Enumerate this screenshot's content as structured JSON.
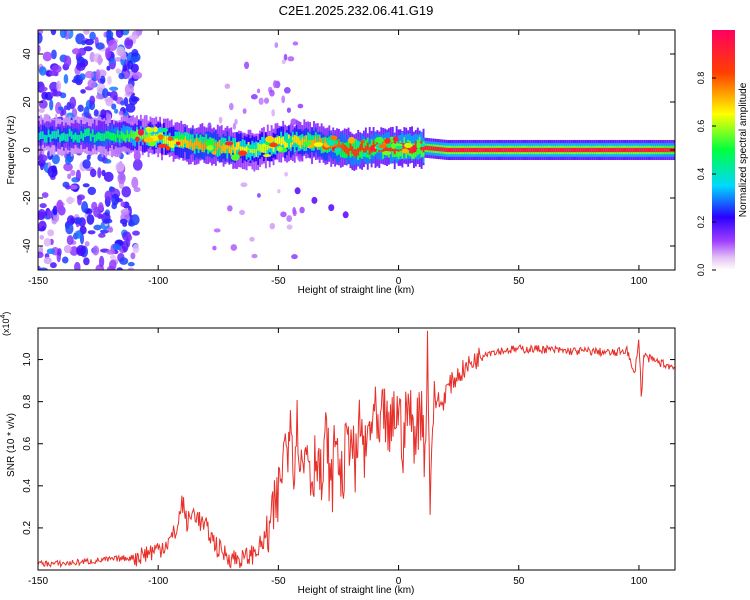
{
  "figure": {
    "title": "C2E1.2025.232.06.41.G19"
  },
  "chart_data": [
    {
      "type": "heatmap",
      "xlabel": "Height of straight line (km)",
      "ylabel": "Frequency (Hz)",
      "xlim": [
        -150,
        115
      ],
      "ylim": [
        -50,
        50
      ],
      "xticks": [
        -150,
        -100,
        -50,
        0,
        50,
        100
      ],
      "yticks": [
        -40,
        -20,
        0,
        20,
        40
      ],
      "colorbar": {
        "label": "Normalized spectral amplitude",
        "range": [
          0.0,
          1.0
        ],
        "ticks": [
          0.0,
          0.2,
          0.4,
          0.6,
          0.8
        ],
        "colors": [
          "#ffffff",
          "#e0b8f0",
          "#a040ff",
          "#2a00ff",
          "#00d8ff",
          "#00ff40",
          "#ffff00",
          "#ff4000",
          "#ff0060"
        ]
      },
      "ridge": {
        "description": "dominant signal line frequency vs height",
        "x": [
          -150,
          -125,
          -110,
          -100,
          -90,
          -80,
          -70,
          -60,
          -50,
          -40,
          -30,
          -20,
          -10,
          0,
          10,
          20,
          40,
          60,
          80,
          100,
          115
        ],
        "y": [
          6,
          6,
          6,
          5,
          3,
          2,
          1,
          0,
          3,
          4,
          2,
          0,
          1,
          1,
          1,
          0,
          0,
          0,
          0,
          0,
          0
        ],
        "amplitude": [
          0.4,
          0.45,
          0.55,
          0.6,
          0.7,
          0.75,
          0.7,
          0.6,
          0.65,
          0.7,
          0.75,
          0.85,
          0.85,
          0.9,
          0.9,
          0.95,
          0.95,
          0.95,
          0.95,
          0.95,
          0.9
        ]
      },
      "secondary_track": {
        "x": [
          -42,
          -35,
          -28,
          -22
        ],
        "y": [
          -17,
          -21,
          -24,
          -27
        ]
      },
      "noise_region": {
        "x_range": [
          -150,
          -108
        ],
        "y_range": [
          -50,
          50
        ],
        "amplitude_range": [
          0.05,
          0.3
        ]
      }
    },
    {
      "type": "line",
      "xlabel": "Height of straight line (km)",
      "ylabel": "SNR (10 * v/v)",
      "exponent_label": "(x10",
      "exponent_power": "4",
      "xlim": [
        -150,
        115
      ],
      "ylim": [
        0.0,
        1.15
      ],
      "xticks": [
        -150,
        -100,
        -50,
        0,
        50,
        100
      ],
      "yticks": [
        0.2,
        0.4,
        0.6,
        0.8,
        1.0
      ],
      "ytick_labels": [
        "0.2",
        "0.4",
        "0.6",
        "0.8",
        "1.0"
      ],
      "series": [
        {
          "name": "SNR",
          "color": "#e8302a",
          "x": [
            -150,
            -140,
            -130,
            -120,
            -110,
            -100,
            -95,
            -92,
            -90,
            -88,
            -85,
            -82,
            -80,
            -75,
            -70,
            -65,
            -60,
            -55,
            -52,
            -50,
            -48,
            -46,
            -45,
            -44,
            -42,
            -40,
            -38,
            -36,
            -34,
            -32,
            -30,
            -28,
            -26,
            -24,
            -22,
            -20,
            -18,
            -16,
            -14,
            -12,
            -10,
            -8,
            -6,
            -4,
            -2,
            0,
            2,
            4,
            6,
            8,
            10,
            11,
            12,
            13,
            14,
            16,
            18,
            20,
            25,
            30,
            35,
            40,
            50,
            60,
            70,
            80,
            90,
            95,
            98,
            100,
            101,
            102,
            105,
            110,
            115
          ],
          "y": [
            0.03,
            0.03,
            0.04,
            0.05,
            0.06,
            0.1,
            0.14,
            0.2,
            0.33,
            0.22,
            0.28,
            0.22,
            0.2,
            0.1,
            0.06,
            0.05,
            0.08,
            0.15,
            0.25,
            0.35,
            0.55,
            0.62,
            0.84,
            0.5,
            0.7,
            0.45,
            0.62,
            0.42,
            0.6,
            0.38,
            0.65,
            0.35,
            0.68,
            0.4,
            0.55,
            0.68,
            0.45,
            0.72,
            0.52,
            0.68,
            0.74,
            0.58,
            0.78,
            0.6,
            0.74,
            0.76,
            0.6,
            0.8,
            0.65,
            0.7,
            0.78,
            0.5,
            1.12,
            0.32,
            0.72,
            0.82,
            0.78,
            0.86,
            0.93,
            0.98,
            1.03,
            1.04,
            1.05,
            1.05,
            1.04,
            1.04,
            1.03,
            1.05,
            0.92,
            1.1,
            0.82,
            1.02,
            1.0,
            0.98,
            0.96
          ]
        }
      ]
    }
  ]
}
